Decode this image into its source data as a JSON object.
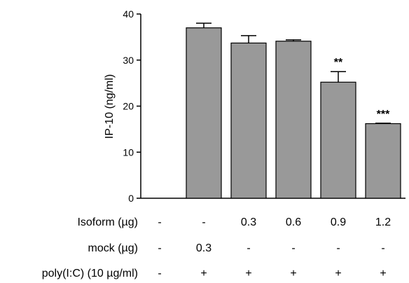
{
  "chart_data": {
    "type": "bar",
    "ylabel": "IP-10 (ng/ml)",
    "ylim": [
      0,
      40
    ],
    "yticks": [
      "0",
      "10",
      "20",
      "30",
      "40"
    ],
    "bar_color": "#999999",
    "values": [
      0,
      37.0,
      33.7,
      34.1,
      25.2,
      16.2
    ],
    "errors": [
      0,
      1.0,
      1.6,
      0.3,
      2.3,
      0.1
    ],
    "significance": [
      "",
      "",
      "",
      "",
      "**",
      "***"
    ],
    "conditions": [
      {
        "label": "Isoform (µg)",
        "values": [
          "-",
          "-",
          "0.3",
          "0.6",
          "0.9",
          "1.2"
        ]
      },
      {
        "label": "mock (µg)",
        "values": [
          "-",
          "0.3",
          "-",
          "-",
          "-",
          "-"
        ]
      },
      {
        "label": "poly(I:C) (10 µg/ml)",
        "values": [
          "-",
          "+",
          "+",
          "+",
          "+",
          "+"
        ]
      }
    ]
  }
}
